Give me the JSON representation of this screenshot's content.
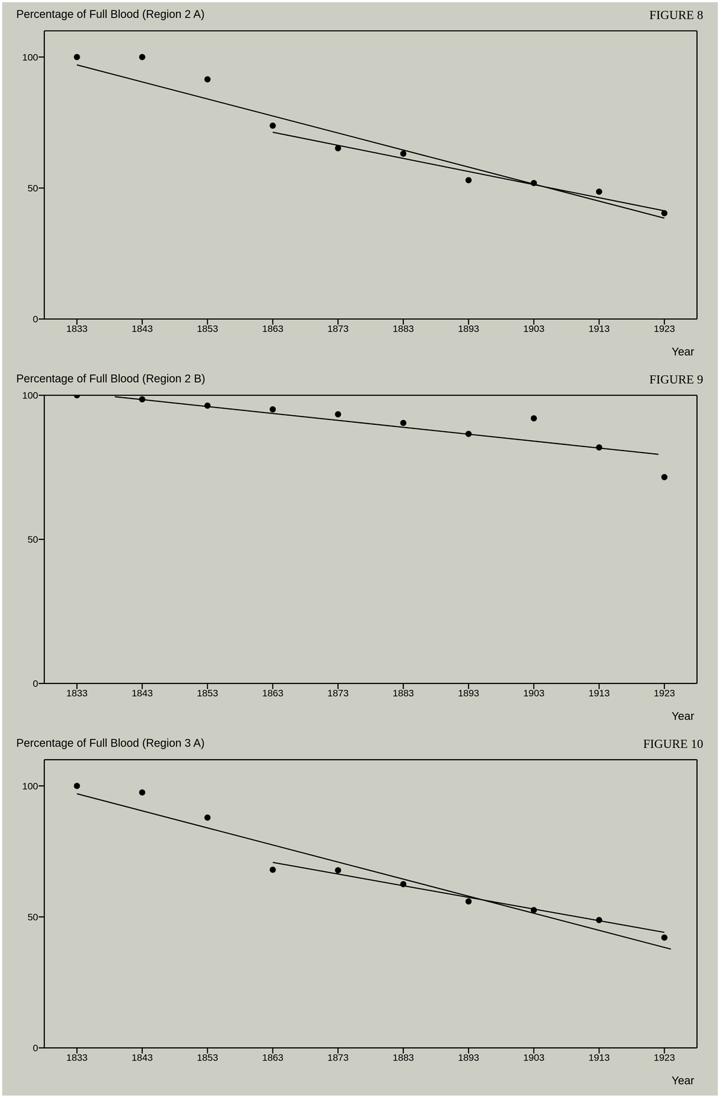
{
  "chart_data": [
    {
      "type": "scatter",
      "title": "Percentage of Full Blood (Region 2 A)",
      "annotations": [
        "FIGURE 8"
      ],
      "x_label": "Year",
      "x": [
        1833,
        1843,
        1853,
        1863,
        1873,
        1883,
        1893,
        1903,
        1913,
        1923
      ],
      "values": [
        100,
        100,
        91.5,
        73.8,
        65.2,
        63.1,
        53,
        51.9,
        48.6,
        40.4
      ],
      "trend_lines": [
        {
          "x": [
            1833,
            1923
          ],
          "values": [
            97,
            38.5
          ]
        },
        {
          "x": [
            1863,
            1923
          ],
          "values": [
            71.3,
            41.3
          ]
        }
      ],
      "xlim": [
        1828,
        1928
      ],
      "xticks": [
        1833,
        1843,
        1853,
        1863,
        1873,
        1883,
        1893,
        1903,
        1913,
        1923
      ],
      "ylim": [
        0,
        110
      ],
      "yticks": [
        0,
        50,
        100
      ],
      "color": "#000000",
      "marker": "circle",
      "grid": false
    },
    {
      "type": "scatter",
      "title": "Percentage of Full Blood (Region 2 B)",
      "annotations": [
        "FIGURE 9"
      ],
      "x_label": "Year",
      "x": [
        1833,
        1843,
        1853,
        1863,
        1873,
        1883,
        1893,
        1903,
        1913,
        1923
      ],
      "values": [
        100,
        98.6,
        96.4,
        95.1,
        93.4,
        90.4,
        86.6,
        92,
        81.9,
        71.6
      ],
      "trend_lines": [
        {
          "x": [
            1838.8,
            1922.1
          ],
          "values": [
            99.5,
            79.5
          ]
        }
      ],
      "xlim": [
        1828,
        1928
      ],
      "xticks": [
        1833,
        1843,
        1853,
        1863,
        1873,
        1883,
        1893,
        1903,
        1913,
        1923
      ],
      "ylim": [
        0,
        100
      ],
      "yticks": [
        0,
        50,
        100
      ],
      "color": "#000000",
      "marker": "circle",
      "grid": false
    },
    {
      "type": "scatter",
      "title": "Percentage of Full Blood (Region 3 A)",
      "annotations": [
        "FIGURE 10"
      ],
      "x_label": "Year",
      "x": [
        1833,
        1843,
        1853,
        1863,
        1873,
        1883,
        1893,
        1903,
        1913,
        1923
      ],
      "values": [
        100,
        97.5,
        87.9,
        68,
        67.8,
        62.5,
        55.9,
        52.6,
        48.8,
        42.1
      ],
      "trend_lines": [
        {
          "x": [
            1833,
            1924
          ],
          "values": [
            97,
            37.7
          ]
        },
        {
          "x": [
            1863,
            1923
          ],
          "values": [
            70.8,
            44.1
          ]
        }
      ],
      "xlim": [
        1828,
        1928
      ],
      "xticks": [
        1833,
        1843,
        1853,
        1863,
        1873,
        1883,
        1893,
        1903,
        1913,
        1923
      ],
      "ylim": [
        0,
        110
      ],
      "yticks": [
        0,
        50,
        100
      ],
      "color": "#000000",
      "marker": "circle",
      "grid": false
    }
  ]
}
